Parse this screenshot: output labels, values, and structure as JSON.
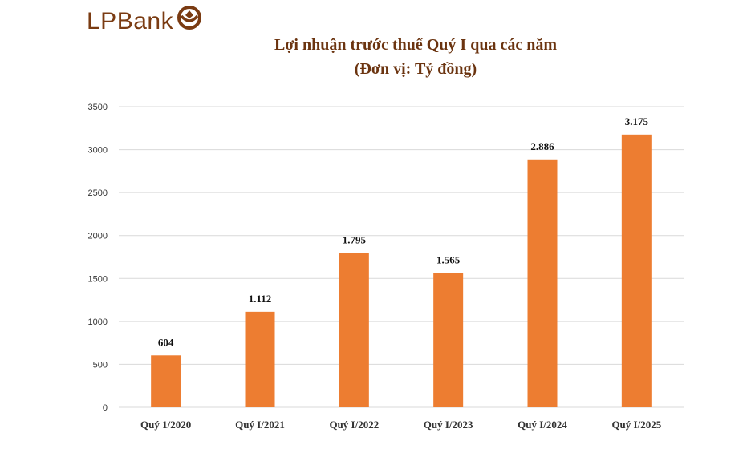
{
  "brand": {
    "name": "LPBank",
    "color": "#7a3b12"
  },
  "chart_data": {
    "type": "bar",
    "title": "Lợi nhuận trước thuế Quý I qua các năm",
    "subtitle": "(Đơn vị: Tỷ đồng)",
    "categories": [
      "Quý 1/2020",
      "Quý I/2021",
      "Quý I/2022",
      "Quý I/2023",
      "Quý I/2024",
      "Quý I/2025"
    ],
    "values": [
      604,
      1112,
      1795,
      1565,
      2886,
      3175
    ],
    "data_labels": [
      "604",
      "1.112",
      "1.795",
      "1.565",
      "2.886",
      "3.175"
    ],
    "yticks": [
      0,
      500,
      1000,
      1500,
      2000,
      2500,
      3000,
      3500
    ],
    "ylim": [
      0,
      3500
    ],
    "xlabel": "",
    "ylabel": "",
    "grid": true,
    "legend": "none",
    "bar_color": "#ed7d31",
    "title_color": "#6b3410"
  }
}
